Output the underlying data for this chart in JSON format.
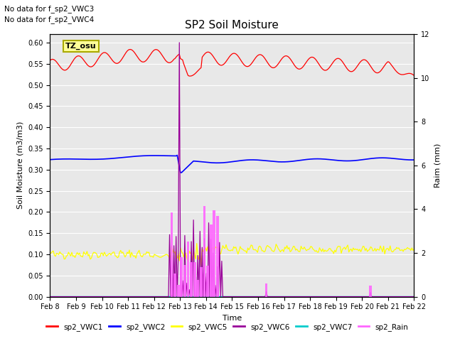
{
  "title": "SP2 Soil Moisture",
  "ylabel_left": "Soil Moisture (m3/m3)",
  "ylabel_right": "Raim (mm)",
  "xlabel": "Time",
  "no_data_text": [
    "No data for f_sp2_VWC3",
    "No data for f_sp2_VWC4"
  ],
  "tz_label": "TZ_osu",
  "ylim_left": [
    0.0,
    0.62
  ],
  "ylim_right": [
    0,
    12
  ],
  "yticks_left": [
    0.0,
    0.05,
    0.1,
    0.15,
    0.2,
    0.25,
    0.3,
    0.35,
    0.4,
    0.45,
    0.5,
    0.55,
    0.6
  ],
  "yticks_right": [
    0,
    2,
    4,
    6,
    8,
    10,
    12
  ],
  "x_tick_labels": [
    "Feb 8",
    "Feb 9",
    "Feb 10",
    "Feb 11",
    "Feb 12",
    "Feb 13",
    "Feb 14",
    "Feb 15",
    "Feb 16",
    "Feb 17",
    "Feb 18",
    "Feb 19",
    "Feb 20",
    "Feb 21",
    "Feb 22"
  ],
  "colors": {
    "sp2_VWC1": "#ff0000",
    "sp2_VWC2": "#0000ff",
    "sp2_VWC5": "#ffff00",
    "sp2_VWC6": "#990099",
    "sp2_VWC7": "#00cccc",
    "sp2_Rain": "#ff66ff",
    "background": "#e8e8e8"
  },
  "legend_entries": [
    "sp2_VWC1",
    "sp2_VWC2",
    "sp2_VWC5",
    "sp2_VWC6",
    "sp2_VWC7",
    "sp2_Rain"
  ]
}
